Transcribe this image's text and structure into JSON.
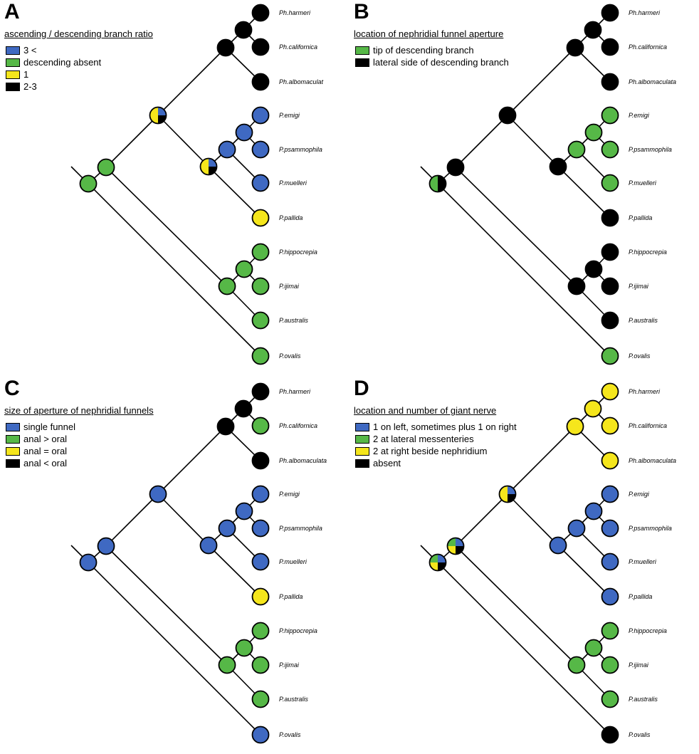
{
  "colors": {
    "blue": "#3f69c2",
    "green": "#56b847",
    "yellow": "#f5e61c",
    "black": "#000000"
  },
  "panels": [
    {
      "id": "A",
      "label": "A",
      "title": "ascending / descending branch ratio",
      "legend": [
        {
          "color": "blue",
          "label": "3 <"
        },
        {
          "color": "green",
          "label": "descending absent"
        },
        {
          "color": "yellow",
          "label": "1"
        },
        {
          "color": "black",
          "label": "2-3"
        }
      ],
      "tips": {
        "hameri": "Ph.harmeri",
        "californica": "Ph.californica",
        "albomaculata": "Ph.albomaculat",
        "emigi": "P.emigi",
        "psammophila": "P.psammophila",
        "muelleri": "P.muelleri",
        "pallida": "P.pallida",
        "hippocrepia": "P.hippocrepia",
        "ijimai": "P.ijimai",
        "australis": "P.australis",
        "ovalis": "P.ovalis"
      },
      "tipStates": {
        "hameri": [
          "black"
        ],
        "californica": [
          "black"
        ],
        "albomaculata": [
          "black"
        ],
        "emigi": [
          "blue"
        ],
        "psammophila": [
          "blue"
        ],
        "muelleri": [
          "blue"
        ],
        "pallida": [
          "yellow"
        ],
        "hippocrepia": [
          "green"
        ],
        "ijimai": [
          "green"
        ],
        "australis": [
          "green"
        ],
        "ovalis": [
          "green"
        ]
      },
      "nodeStates": {
        "n_hc": [
          "black"
        ],
        "n_ph": [
          "black"
        ],
        "n_ep": [
          "blue"
        ],
        "n_epm": [
          "blue"
        ],
        "n_pall": [
          "blue",
          "black",
          "yellow",
          "yellow"
        ],
        "n_P1": [
          "blue",
          "black",
          "yellow",
          "yellow"
        ],
        "n_hi": [
          "green"
        ],
        "n_hia": [
          "green"
        ],
        "n_P2": [
          "green"
        ],
        "n_root": [
          "green"
        ]
      }
    },
    {
      "id": "B",
      "label": "B",
      "title": "location of nephridial funnel aperture",
      "legend": [
        {
          "color": "green",
          "label": "tip of descending branch"
        },
        {
          "color": "black",
          "label": "lateral side of descending branch"
        }
      ],
      "tips": {
        "hameri": "Ph.harmeri",
        "californica": "Ph.californica",
        "albomaculata": "Ph.albomaculata",
        "emigi": "P.emigi",
        "psammophila": "P.psammophila",
        "muelleri": "P.muelleri",
        "pallida": "P.pallida",
        "hippocrepia": "P.hippocrepia",
        "ijimai": "P.ijimai",
        "australis": "P.australis",
        "ovalis": "P.ovalis"
      },
      "tipStates": {
        "hameri": [
          "black"
        ],
        "californica": [
          "black"
        ],
        "albomaculata": [
          "black"
        ],
        "emigi": [
          "green"
        ],
        "psammophila": [
          "green"
        ],
        "muelleri": [
          "green"
        ],
        "pallida": [
          "black"
        ],
        "hippocrepia": [
          "black"
        ],
        "ijimai": [
          "black"
        ],
        "australis": [
          "black"
        ],
        "ovalis": [
          "green"
        ]
      },
      "nodeStates": {
        "n_hc": [
          "black"
        ],
        "n_ph": [
          "black"
        ],
        "n_ep": [
          "green"
        ],
        "n_epm": [
          "green"
        ],
        "n_pall": [
          "black"
        ],
        "n_P1": [
          "black"
        ],
        "n_hi": [
          "black"
        ],
        "n_hia": [
          "black"
        ],
        "n_P2": [
          "black"
        ],
        "n_root": [
          "green",
          "black"
        ]
      }
    },
    {
      "id": "C",
      "label": "C",
      "title": "size of aperture of nephridial funnels",
      "legend": [
        {
          "color": "blue",
          "label": "single funnel"
        },
        {
          "color": "green",
          "label": "anal > oral"
        },
        {
          "color": "yellow",
          "label": "anal = oral"
        },
        {
          "color": "black",
          "label": "anal < oral"
        }
      ],
      "tips": {
        "hameri": "Ph.harmeri",
        "californica": "Ph.californica",
        "albomaculata": "Ph.albomaculata",
        "emigi": "P.emigi",
        "psammophila": "P.psammophila",
        "muelleri": "P.muelleri",
        "pallida": "P.pallida",
        "hippocrepia": "P.hippocrepia",
        "ijimai": "P.ijimai",
        "australis": "P.australis",
        "ovalis": "P.ovalis"
      },
      "tipStates": {
        "hameri": [
          "black"
        ],
        "californica": [
          "green"
        ],
        "albomaculata": [
          "black"
        ],
        "emigi": [
          "blue"
        ],
        "psammophila": [
          "blue"
        ],
        "muelleri": [
          "blue"
        ],
        "pallida": [
          "yellow"
        ],
        "hippocrepia": [
          "green"
        ],
        "ijimai": [
          "green"
        ],
        "australis": [
          "green"
        ],
        "ovalis": [
          "blue"
        ]
      },
      "nodeStates": {
        "n_hc": [
          "black"
        ],
        "n_ph": [
          "black"
        ],
        "n_ep": [
          "blue"
        ],
        "n_epm": [
          "blue"
        ],
        "n_pall": [
          "blue"
        ],
        "n_P1": [
          "blue"
        ],
        "n_hi": [
          "green"
        ],
        "n_hia": [
          "green"
        ],
        "n_P2": [
          "blue"
        ],
        "n_root": [
          "blue"
        ]
      }
    },
    {
      "id": "D",
      "label": "D",
      "title": "location and number of giant nerve",
      "legend": [
        {
          "color": "blue",
          "label": "1 on left, sometimes plus 1 on right"
        },
        {
          "color": "green",
          "label": "2 at lateral messenteries"
        },
        {
          "color": "yellow",
          "label": "2 at right beside nephridium"
        },
        {
          "color": "black",
          "label": "absent"
        }
      ],
      "tips": {
        "hameri": "Ph.harmeri",
        "californica": "Ph.californica",
        "albomaculata": "Ph.albomaculata",
        "emigi": "P.emigi",
        "psammophila": "P.psammophila",
        "muelleri": "P.muelleri",
        "pallida": "P.pallida",
        "hippocrepia": "P.hippocrepia",
        "ijimai": "P.ijimai",
        "australis": "P.australis",
        "ovalis": "P.ovalis"
      },
      "tipStates": {
        "hameri": [
          "yellow"
        ],
        "californica": [
          "yellow"
        ],
        "albomaculata": [
          "yellow"
        ],
        "emigi": [
          "blue"
        ],
        "psammophila": [
          "blue"
        ],
        "muelleri": [
          "blue"
        ],
        "pallida": [
          "blue"
        ],
        "hippocrepia": [
          "green"
        ],
        "ijimai": [
          "green"
        ],
        "australis": [
          "green"
        ],
        "ovalis": [
          "black"
        ]
      },
      "nodeStates": {
        "n_hc": [
          "yellow"
        ],
        "n_ph": [
          "yellow"
        ],
        "n_ep": [
          "blue"
        ],
        "n_epm": [
          "blue"
        ],
        "n_pall": [
          "blue"
        ],
        "n_P1": [
          "blue",
          "black",
          "yellow",
          "yellow"
        ],
        "n_hi": [
          "green"
        ],
        "n_hia": [
          "green"
        ],
        "n_P2": [
          "blue",
          "black",
          "yellow",
          "green"
        ],
        "n_root": [
          "blue",
          "black",
          "yellow",
          "green"
        ]
      }
    }
  ]
}
